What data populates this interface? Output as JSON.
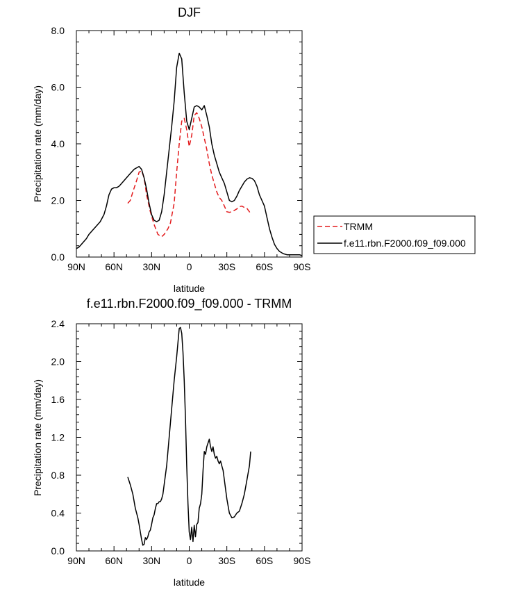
{
  "chart_data": [
    {
      "type": "line",
      "title": "DJF",
      "xlabel": "latitude",
      "ylabel": "Precipitation rate (mm/day)",
      "xlim": [
        90,
        -90
      ],
      "ylim": [
        0,
        8
      ],
      "xticks": [
        90,
        60,
        30,
        0,
        -30,
        -60,
        -90
      ],
      "xtick_labels": [
        "90N",
        "60N",
        "30N",
        "0",
        "30S",
        "60S",
        "90S"
      ],
      "yticks": [
        0,
        2,
        4,
        6,
        8
      ],
      "ytick_labels": [
        "0.0",
        "2.0",
        "4.0",
        "6.0",
        "8.0"
      ],
      "legend_position": "right",
      "series": [
        {
          "name": "TRMM",
          "color": "#e31a1c",
          "style": "dashed",
          "x": [
            49,
            47,
            45,
            42,
            40,
            38,
            36,
            34,
            31,
            28,
            25,
            22,
            20,
            17,
            15,
            12,
            10,
            8,
            6,
            4,
            2,
            0,
            -2,
            -4,
            -6,
            -8,
            -10,
            -12,
            -14,
            -16,
            -18,
            -20,
            -22,
            -24,
            -26,
            -28,
            -30,
            -32,
            -34,
            -36,
            -38,
            -40,
            -42,
            -44,
            -46,
            -48,
            -49
          ],
          "y": [
            1.9,
            2.0,
            2.3,
            2.7,
            3.0,
            3.05,
            2.8,
            2.2,
            1.6,
            1.15,
            0.8,
            0.72,
            0.8,
            1.0,
            1.2,
            1.9,
            3.0,
            4.0,
            4.8,
            4.9,
            4.5,
            3.9,
            4.3,
            5.0,
            5.1,
            4.9,
            4.6,
            4.2,
            3.8,
            3.3,
            2.9,
            2.6,
            2.3,
            2.1,
            2.0,
            1.8,
            1.6,
            1.58,
            1.6,
            1.65,
            1.7,
            1.78,
            1.8,
            1.75,
            1.72,
            1.6,
            1.5
          ]
        },
        {
          "name": "f.e11.rbn.F2000.f09_f09.000",
          "color": "#000000",
          "style": "solid",
          "x": [
            90,
            88,
            86,
            84,
            82,
            80,
            77,
            74,
            71,
            68,
            66,
            64,
            62,
            60,
            58,
            56,
            54,
            52,
            50,
            48,
            46,
            44,
            42,
            40,
            38,
            36,
            34,
            32,
            30,
            28,
            26,
            24,
            22,
            20,
            18,
            16,
            14,
            12,
            10,
            8,
            6,
            4,
            2,
            0,
            -2,
            -4,
            -6,
            -8,
            -10,
            -12,
            -14,
            -16,
            -18,
            -20,
            -22,
            -24,
            -26,
            -28,
            -30,
            -32,
            -34,
            -36,
            -38,
            -40,
            -42,
            -44,
            -46,
            -48,
            -50,
            -52,
            -54,
            -56,
            -58,
            -60,
            -62,
            -64,
            -66,
            -68,
            -70,
            -72,
            -75,
            -78,
            -80,
            -84,
            -88,
            -90
          ],
          "y": [
            0.3,
            0.35,
            0.45,
            0.55,
            0.65,
            0.8,
            0.95,
            1.1,
            1.25,
            1.5,
            1.8,
            2.2,
            2.4,
            2.45,
            2.45,
            2.5,
            2.6,
            2.7,
            2.8,
            2.9,
            3.0,
            3.1,
            3.15,
            3.2,
            3.1,
            2.8,
            2.4,
            1.9,
            1.5,
            1.3,
            1.25,
            1.3,
            1.6,
            2.2,
            3.0,
            3.8,
            4.6,
            5.5,
            6.7,
            7.2,
            7.0,
            5.8,
            4.8,
            4.5,
            4.9,
            5.3,
            5.35,
            5.3,
            5.2,
            5.35,
            5.0,
            4.6,
            4.0,
            3.6,
            3.3,
            3.0,
            2.8,
            2.6,
            2.3,
            2.0,
            1.95,
            2.0,
            2.15,
            2.35,
            2.5,
            2.65,
            2.75,
            2.8,
            2.78,
            2.7,
            2.5,
            2.2,
            2.0,
            1.8,
            1.4,
            1.0,
            0.7,
            0.45,
            0.3,
            0.2,
            0.12,
            0.08,
            0.08,
            0.08,
            0.08,
            0.05
          ]
        }
      ]
    },
    {
      "type": "line",
      "title": "f.e11.rbn.F2000.f09_f09.000 - TRMM",
      "xlabel": "latitude",
      "ylabel": "Precipitation rate (mm/day)",
      "xlim": [
        90,
        -90
      ],
      "ylim": [
        0,
        2.4
      ],
      "xticks": [
        90,
        60,
        30,
        0,
        -30,
        -60,
        -90
      ],
      "xtick_labels": [
        "90N",
        "60N",
        "30N",
        "0",
        "30S",
        "60S",
        "90S"
      ],
      "yticks": [
        0,
        0.4,
        0.8,
        1.2,
        1.6,
        2.0,
        2.4
      ],
      "ytick_labels": [
        "0.0",
        "0.4",
        "0.8",
        "1.2",
        "1.6",
        "2.0",
        "2.4"
      ],
      "series": [
        {
          "name": "f.e11.rbn.F2000.f09_f09.000 - TRMM",
          "color": "#000000",
          "style": "solid",
          "x": [
            49,
            47,
            45,
            43,
            41,
            40,
            39,
            38,
            37,
            36,
            35,
            34,
            33,
            32,
            31,
            30,
            29,
            28,
            27,
            26,
            25,
            24,
            23,
            22,
            21,
            20,
            18,
            16,
            14,
            12,
            10,
            8,
            7,
            6,
            5,
            4,
            3,
            2,
            1,
            0,
            -1,
            -2,
            -3,
            -4,
            -5,
            -6,
            -7,
            -8,
            -9,
            -10,
            -11,
            -12,
            -13,
            -14,
            -16,
            -17,
            -18,
            -19,
            -20,
            -21,
            -22,
            -23,
            -24,
            -25,
            -26,
            -27,
            -28,
            -30,
            -32,
            -34,
            -36,
            -38,
            -40,
            -42,
            -44,
            -46,
            -48,
            -49
          ],
          "y": [
            0.78,
            0.7,
            0.6,
            0.45,
            0.35,
            0.28,
            0.2,
            0.12,
            0.06,
            0.07,
            0.14,
            0.12,
            0.15,
            0.2,
            0.22,
            0.28,
            0.35,
            0.38,
            0.45,
            0.5,
            0.5,
            0.52,
            0.52,
            0.55,
            0.6,
            0.7,
            0.9,
            1.2,
            1.5,
            1.8,
            2.05,
            2.35,
            2.36,
            2.3,
            2.1,
            1.8,
            1.4,
            0.9,
            0.5,
            0.2,
            0.12,
            0.25,
            0.1,
            0.27,
            0.15,
            0.28,
            0.3,
            0.45,
            0.5,
            0.6,
            0.85,
            1.05,
            1.02,
            1.1,
            1.18,
            1.1,
            1.05,
            1.1,
            1.02,
            0.98,
            1.0,
            0.95,
            0.92,
            0.95,
            0.9,
            0.85,
            0.75,
            0.55,
            0.4,
            0.35,
            0.36,
            0.4,
            0.42,
            0.5,
            0.6,
            0.75,
            0.9,
            1.05
          ]
        }
      ]
    }
  ]
}
